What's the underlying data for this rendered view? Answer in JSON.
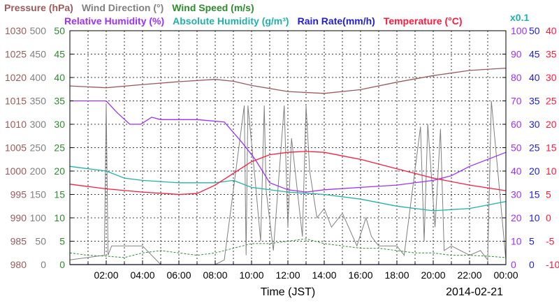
{
  "chart_data": {
    "type": "line",
    "date": "2014-02-21",
    "xlabel": "Time (JST)",
    "x_ticks": [
      "02:00",
      "04:00",
      "06:00",
      "08:00",
      "10:00",
      "12:00",
      "14:00",
      "16:00",
      "18:00",
      "20:00",
      "22:00",
      "00:00"
    ],
    "xlim": [
      0,
      24
    ],
    "legend_top": [
      {
        "text": "Pressure (hPa)",
        "color": "#9c5a5a"
      },
      {
        "text": "Wind Direction (°)",
        "color": "#808080"
      },
      {
        "text": "Wind Speed (m/s)",
        "color": "#2e8b2e"
      }
    ],
    "legend_bottom": [
      {
        "text": "Relative Humidity (%)",
        "color": "#9b30ff"
      },
      {
        "text": "Absolute Humidity (g/m³)",
        "color": "#20b2aa"
      },
      {
        "text": "Rain Rate(mm/h)",
        "color": "#1e1edc"
      },
      {
        "text": "Temperature (°C)",
        "color": "#ff1a3c"
      }
    ],
    "abs_humidity_scale_note": "x0.1",
    "axes": {
      "pressure": {
        "label": "Pressure (hPa)",
        "color": "#9c5a5a",
        "ticks": [
          "980",
          "985",
          "990",
          "995",
          "1000",
          "1005",
          "1010",
          "1015",
          "1020",
          "1025",
          "1030"
        ],
        "range": [
          980,
          1030
        ]
      },
      "wind_direction": {
        "label": "Wind Direction (°)",
        "color": "#808080",
        "ticks": [
          "0",
          "50",
          "100",
          "150",
          "200",
          "250",
          "300",
          "350",
          "400",
          "450",
          "500"
        ],
        "range": [
          0,
          500
        ]
      },
      "wind_speed": {
        "label": "Wind Speed (m/s)",
        "color": "#2e8b2e",
        "ticks": [
          "0",
          "5",
          "10",
          "15",
          "20",
          "25",
          "30",
          "35",
          "40",
          "45",
          "50"
        ],
        "range": [
          0,
          50
        ]
      },
      "humidity": {
        "label": "Relative Humidity (%)",
        "color": "#9b30ff",
        "ticks": [
          "0",
          "10",
          "20",
          "30",
          "40",
          "50",
          "60",
          "70",
          "80",
          "90",
          "100"
        ],
        "range": [
          0,
          100
        ]
      },
      "rain_rate": {
        "label": "Rain Rate(mm/h)",
        "color": "#1e1edc",
        "ticks": [
          "0",
          "5",
          "10",
          "15",
          "20",
          "25",
          "30",
          "35",
          "40",
          "45",
          "50"
        ],
        "range": [
          0,
          50
        ]
      },
      "temperature": {
        "label": "Temperature (°C)",
        "color": "#ff1a3c",
        "ticks": [
          "-10",
          "-5",
          "0",
          "5",
          "10",
          "15",
          "20",
          "25",
          "30",
          "35",
          "40"
        ],
        "range": [
          -10,
          40
        ]
      }
    },
    "series": [
      {
        "name": "Pressure (hPa)",
        "axis": "pressure",
        "color": "#9c5a5a",
        "x": [
          0,
          2,
          4,
          6,
          8,
          9,
          10,
          12,
          14,
          16,
          18,
          20,
          22,
          24
        ],
        "y": [
          1018.2,
          1017.8,
          1018.5,
          1019.1,
          1019.6,
          1019.2,
          1018.3,
          1017.0,
          1016.6,
          1017.4,
          1019.0,
          1020.4,
          1021.5,
          1022.0
        ]
      },
      {
        "name": "Relative Humidity (%)",
        "axis": "humidity",
        "color": "#9b30ff",
        "x": [
          0,
          2,
          2.6,
          3.3,
          3.9,
          4.5,
          5,
          7,
          8.5,
          9.5,
          10.2,
          11,
          12,
          13,
          14,
          16,
          18,
          20,
          21,
          22,
          23,
          24
        ],
        "y": [
          70,
          70,
          65,
          60,
          60,
          63,
          62,
          62,
          61,
          52,
          45,
          35,
          32,
          31,
          32,
          33,
          34,
          36,
          38,
          42,
          45,
          48
        ]
      },
      {
        "name": "Absolute Humidity (g/m³)",
        "axis": "humidity",
        "color": "#20b2aa",
        "x": [
          0,
          2,
          3,
          4,
          6,
          8,
          9,
          10,
          12,
          14,
          16,
          18,
          20,
          22,
          24
        ],
        "y": [
          42,
          40,
          37,
          36,
          35,
          35,
          36,
          33,
          31,
          30,
          28,
          25,
          23,
          24,
          27
        ]
      },
      {
        "name": "Temperature (°C)",
        "axis": "temperature",
        "color": "#ff1a3c",
        "x": [
          0,
          2,
          4,
          6,
          7,
          8,
          9,
          10,
          11,
          12,
          13,
          14,
          16,
          18,
          20,
          22,
          24
        ],
        "y": [
          7.2,
          6.2,
          5.5,
          5.0,
          5.2,
          7.0,
          9.5,
          12.0,
          13.5,
          14.0,
          14.2,
          14.0,
          12.5,
          10.5,
          8.5,
          7.0,
          5.8
        ]
      },
      {
        "name": "Wind Direction (°)",
        "axis": "wind_direction",
        "color": "#808080",
        "x": [
          0,
          1.9,
          2.0,
          2.1,
          2.3,
          3,
          4,
          5,
          6,
          7,
          8,
          8.5,
          9.6,
          9.7,
          9.8,
          10.2,
          10.5,
          10.7,
          10.8,
          11.2,
          11.8,
          12.0,
          12.2,
          12.8,
          13.0,
          13.2,
          13.6,
          14.0,
          14.4,
          15,
          15.8,
          16.3,
          16.6,
          17,
          18,
          18.4,
          19.3,
          19.5,
          19.7,
          20.1,
          20.4,
          20.6,
          21,
          22,
          22.6,
          23.0,
          23.2,
          24
        ],
        "y": [
          10,
          20,
          345,
          20,
          40,
          40,
          40,
          0,
          0,
          0,
          0,
          10,
          340,
          20,
          340,
          180,
          50,
          340,
          160,
          30,
          340,
          80,
          270,
          60,
          340,
          200,
          100,
          120,
          80,
          110,
          40,
          100,
          60,
          40,
          40,
          20,
          295,
          50,
          300,
          80,
          290,
          30,
          40,
          20,
          30,
          10,
          350,
          10
        ]
      },
      {
        "name": "Wind Speed (m/s)",
        "axis": "wind_speed",
        "color": "#2e8b2e",
        "x": [
          0,
          1,
          2,
          3,
          4,
          5,
          6,
          7,
          8,
          9,
          10,
          11,
          12,
          13,
          14,
          15,
          16,
          17,
          18,
          19,
          20,
          21,
          22,
          23,
          24
        ],
        "y": [
          2.5,
          2.0,
          1.8,
          1.5,
          2.5,
          3.0,
          2.5,
          2.0,
          2.5,
          3.5,
          4.5,
          4.5,
          5.0,
          5.5,
          4.5,
          4.0,
          3.5,
          3.5,
          3.0,
          2.5,
          2.5,
          2.0,
          2.0,
          1.8,
          1.5
        ]
      },
      {
        "name": "Rain Rate(mm/h)",
        "axis": "rain_rate",
        "color": "#1e1edc",
        "x": [
          0,
          24
        ],
        "y": [
          0,
          0
        ]
      }
    ],
    "grid": true
  }
}
